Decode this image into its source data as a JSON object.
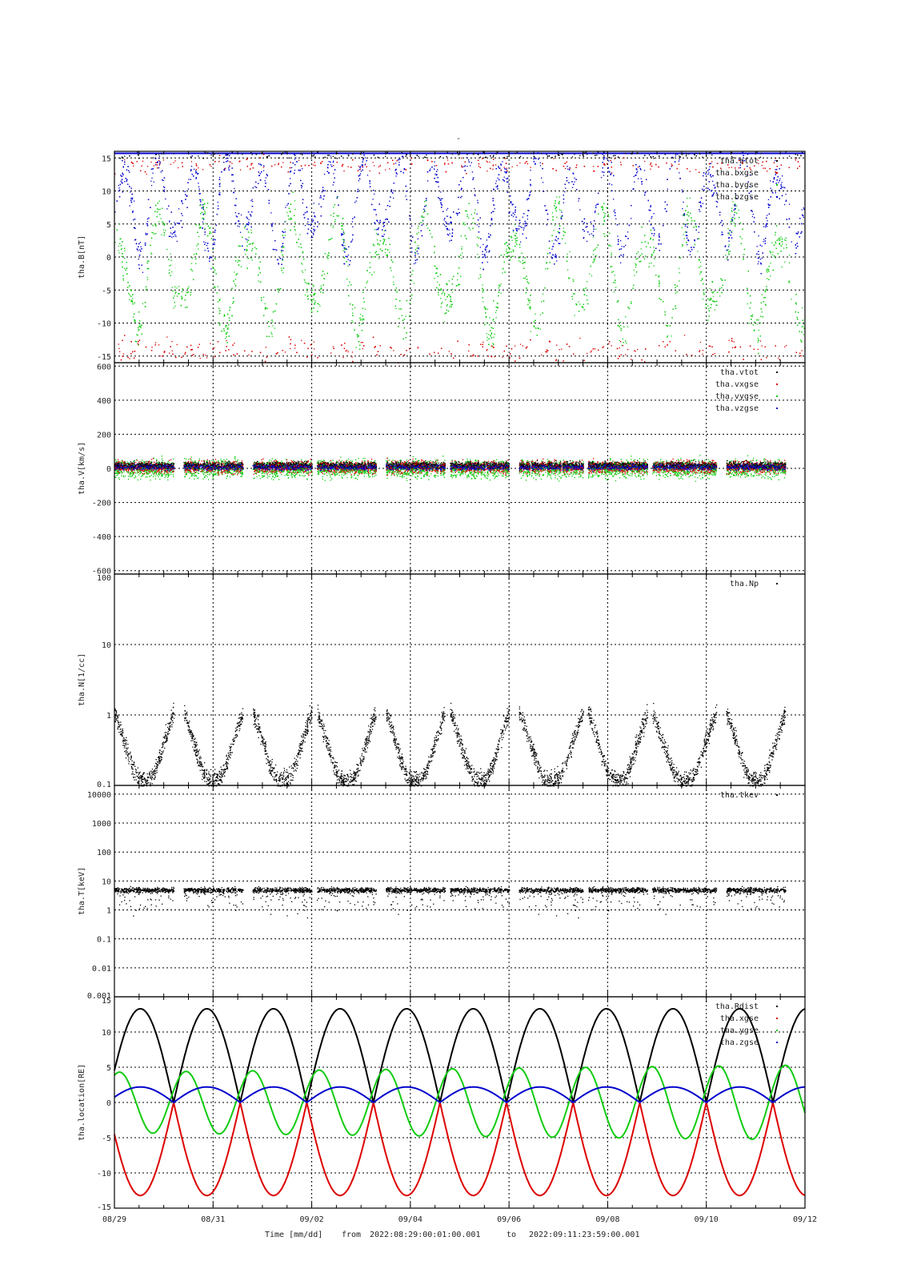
{
  "colors": {
    "black": "#000000",
    "red": "#dd0000",
    "green": "#11cc11",
    "blue": "#0000cc"
  },
  "title": "-",
  "footer": {
    "xlabel": "Time [mm/dd]",
    "from_label": "from",
    "from": "2022:08:29:00:01:00.001",
    "to_label": "to",
    "to": "2022:09:11:23:59:00.001"
  },
  "chart_data": [
    {
      "type": "scatter",
      "ylabel": "tha.B[nT]",
      "ylim": [
        -16,
        16
      ],
      "yscale": "linear",
      "yticks": [
        15,
        10,
        5,
        0,
        -5,
        -10,
        -15
      ],
      "xlim": [
        "2022-08-29",
        "2022-09-12"
      ],
      "xticks": [
        "08/29",
        "08/31",
        "09/02",
        "09/04",
        "09/06",
        "09/08",
        "09/10",
        "09/12"
      ],
      "grid": true,
      "legend_position": "top-right",
      "series": [
        {
          "name": "tha.btot",
          "color": "#000000"
        },
        {
          "name": "tha.bxgse",
          "color": "#dd0000"
        },
        {
          "name": "tha.bygse",
          "color": "#11cc11"
        },
        {
          "name": "tha.bzgse",
          "color": "#0000cc"
        }
      ]
    },
    {
      "type": "scatter",
      "ylabel": "tha.V[km/s]",
      "ylim": [
        -620,
        620
      ],
      "yscale": "linear",
      "yticks": [
        600,
        400,
        200,
        0,
        -200,
        -400,
        -600
      ],
      "grid": true,
      "legend_position": "top-right",
      "series": [
        {
          "name": "tha.vtot",
          "color": "#000000"
        },
        {
          "name": "tha.vxgse",
          "color": "#dd0000"
        },
        {
          "name": "tha.vygse",
          "color": "#11cc11"
        },
        {
          "name": "tha.vzgse",
          "color": "#0000cc"
        }
      ]
    },
    {
      "type": "scatter",
      "ylabel": "tha.N[1/cc]",
      "ylim": [
        0.1,
        100
      ],
      "yscale": "log",
      "yticks": [
        "100",
        "10",
        "1",
        "0.1"
      ],
      "grid": true,
      "legend_position": "top-right",
      "series": [
        {
          "name": "tha.Np",
          "color": "#000000"
        }
      ]
    },
    {
      "type": "scatter",
      "ylabel": "tha.T[keV]",
      "ylim": [
        0.001,
        20000
      ],
      "yscale": "log",
      "yticks": [
        "10000",
        "1000",
        "100",
        "10",
        "1",
        "0.1",
        "0.01",
        "0.001"
      ],
      "grid": true,
      "legend_position": "top-right",
      "series": [
        {
          "name": "tha.tkev",
          "color": "#000000"
        }
      ]
    },
    {
      "type": "line",
      "ylabel": "tha.location[RE]",
      "ylim": [
        -15,
        15
      ],
      "yscale": "linear",
      "yticks": [
        15,
        10,
        5,
        0,
        -5,
        -10,
        -15
      ],
      "grid": true,
      "legend_position": "top-right",
      "orbit_period_days": 1.35,
      "series": [
        {
          "name": "tha.Rdist",
          "color": "#000000",
          "min": 0.8,
          "max": 13.3
        },
        {
          "name": "tha.xgse",
          "color": "#dd0000",
          "min": -13.2,
          "max": 0
        },
        {
          "name": "tha.ygse",
          "color": "#11cc11",
          "min": -4.3,
          "max": 4.6
        },
        {
          "name": "tha.zgse",
          "color": "#0000cc",
          "min": 0,
          "max": 2.2
        }
      ]
    }
  ]
}
